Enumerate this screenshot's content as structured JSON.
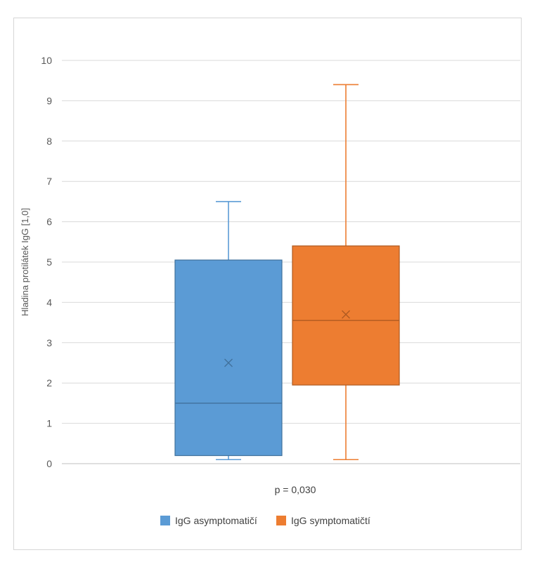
{
  "chart_data": {
    "type": "box",
    "ylabel": "Hladina protilátek IgG [1,0]",
    "ylim": [
      0,
      10
    ],
    "yticks": [
      "0",
      "1",
      "2",
      "3",
      "4",
      "5",
      "6",
      "7",
      "8",
      "9",
      "10"
    ],
    "grid": true,
    "annotation": "p = 0,030",
    "legend_position": "bottom",
    "series": [
      {
        "name": "IgG asymptomatičí",
        "color": "#5b9bd5",
        "stroke": "#41719c",
        "min": 0.1,
        "q1": 0.2,
        "median": 1.5,
        "mean": 2.5,
        "q3": 5.05,
        "max": 6.5
      },
      {
        "name": "IgG symptomatičtí",
        "color": "#ed7d31",
        "stroke": "#ae5a21",
        "min": 0.1,
        "q1": 1.95,
        "median": 3.55,
        "mean": 3.7,
        "q3": 5.4,
        "max": 9.4
      }
    ]
  }
}
